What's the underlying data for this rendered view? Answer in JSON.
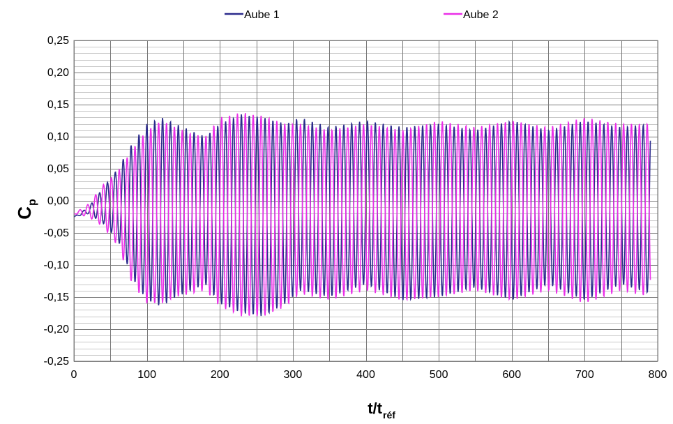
{
  "chart_data": {
    "type": "line",
    "xlabel": "t/t",
    "xlabel_sub": "réf",
    "ylabel": "C",
    "ylabel_sub": "p",
    "xlim": [
      0,
      800
    ],
    "ylim": [
      -0.25,
      0.25
    ],
    "x_ticks": [
      0,
      100,
      200,
      300,
      400,
      500,
      600,
      700,
      800
    ],
    "x_tick_labels": [
      "0",
      "100",
      "200",
      "300",
      "400",
      "500",
      "600",
      "700",
      "800"
    ],
    "y_ticks": [
      0.25,
      0.2,
      0.15,
      0.1,
      0.05,
      0.0,
      -0.05,
      -0.1,
      -0.15,
      -0.2,
      -0.25
    ],
    "y_tick_labels": [
      "0,25",
      "0,20",
      "0,15",
      "0,10",
      "0,05",
      "0,00",
      "-0,05",
      "-0,10",
      "-0,15",
      "-0,20",
      "-0,25"
    ],
    "grid": true,
    "legend_position": "top",
    "series": [
      {
        "name": "Aube 1",
        "color": "#2b2a8c",
        "period": 10.8,
        "phase": 0,
        "end_x": 790,
        "envelope_max": [
          [
            0,
            -0.025
          ],
          [
            20,
            -0.01
          ],
          [
            40,
            0.02
          ],
          [
            60,
            0.05
          ],
          [
            80,
            0.09
          ],
          [
            100,
            0.12
          ],
          [
            120,
            0.13
          ],
          [
            140,
            0.12
          ],
          [
            160,
            0.11
          ],
          [
            180,
            0.1
          ],
          [
            200,
            0.12
          ],
          [
            230,
            0.135
          ],
          [
            260,
            0.13
          ],
          [
            290,
            0.12
          ],
          [
            310,
            0.13
          ],
          [
            350,
            0.115
          ],
          [
            400,
            0.125
          ],
          [
            450,
            0.115
          ],
          [
            500,
            0.12
          ],
          [
            550,
            0.11
          ],
          [
            600,
            0.125
          ],
          [
            650,
            0.11
          ],
          [
            700,
            0.125
          ],
          [
            750,
            0.115
          ],
          [
            790,
            0.12
          ]
        ],
        "envelope_min": [
          [
            0,
            -0.025
          ],
          [
            20,
            -0.02
          ],
          [
            40,
            -0.035
          ],
          [
            60,
            -0.06
          ],
          [
            80,
            -0.12
          ],
          [
            100,
            -0.155
          ],
          [
            120,
            -0.165
          ],
          [
            140,
            -0.15
          ],
          [
            160,
            -0.14
          ],
          [
            180,
            -0.13
          ],
          [
            200,
            -0.16
          ],
          [
            230,
            -0.175
          ],
          [
            260,
            -0.18
          ],
          [
            290,
            -0.16
          ],
          [
            310,
            -0.14
          ],
          [
            350,
            -0.15
          ],
          [
            400,
            -0.13
          ],
          [
            450,
            -0.155
          ],
          [
            500,
            -0.15
          ],
          [
            550,
            -0.135
          ],
          [
            600,
            -0.155
          ],
          [
            650,
            -0.13
          ],
          [
            700,
            -0.155
          ],
          [
            750,
            -0.13
          ],
          [
            790,
            -0.145
          ]
        ]
      },
      {
        "name": "Aube 2",
        "color": "#ea2ee8",
        "period": 10.8,
        "phase": 3.14159,
        "end_x": 790,
        "envelope_max": [
          [
            0,
            -0.02
          ],
          [
            20,
            -0.005
          ],
          [
            40,
            0.025
          ],
          [
            60,
            0.045
          ],
          [
            80,
            0.08
          ],
          [
            100,
            0.11
          ],
          [
            120,
            0.125
          ],
          [
            140,
            0.115
          ],
          [
            160,
            0.105
          ],
          [
            180,
            0.1
          ],
          [
            200,
            0.13
          ],
          [
            230,
            0.138
          ],
          [
            260,
            0.132
          ],
          [
            290,
            0.12
          ],
          [
            310,
            0.12
          ],
          [
            350,
            0.11
          ],
          [
            400,
            0.12
          ],
          [
            450,
            0.11
          ],
          [
            500,
            0.125
          ],
          [
            550,
            0.115
          ],
          [
            600,
            0.125
          ],
          [
            650,
            0.115
          ],
          [
            700,
            0.13
          ],
          [
            750,
            0.12
          ],
          [
            790,
            0.12
          ]
        ],
        "envelope_min": [
          [
            0,
            -0.02
          ],
          [
            20,
            -0.025
          ],
          [
            40,
            -0.04
          ],
          [
            60,
            -0.07
          ],
          [
            80,
            -0.13
          ],
          [
            100,
            -0.16
          ],
          [
            120,
            -0.16
          ],
          [
            140,
            -0.15
          ],
          [
            160,
            -0.145
          ],
          [
            180,
            -0.14
          ],
          [
            200,
            -0.165
          ],
          [
            230,
            -0.18
          ],
          [
            260,
            -0.18
          ],
          [
            290,
            -0.165
          ],
          [
            310,
            -0.145
          ],
          [
            350,
            -0.155
          ],
          [
            400,
            -0.14
          ],
          [
            450,
            -0.155
          ],
          [
            500,
            -0.15
          ],
          [
            550,
            -0.14
          ],
          [
            600,
            -0.155
          ],
          [
            650,
            -0.14
          ],
          [
            700,
            -0.16
          ],
          [
            750,
            -0.14
          ],
          [
            790,
            -0.15
          ]
        ]
      }
    ]
  }
}
